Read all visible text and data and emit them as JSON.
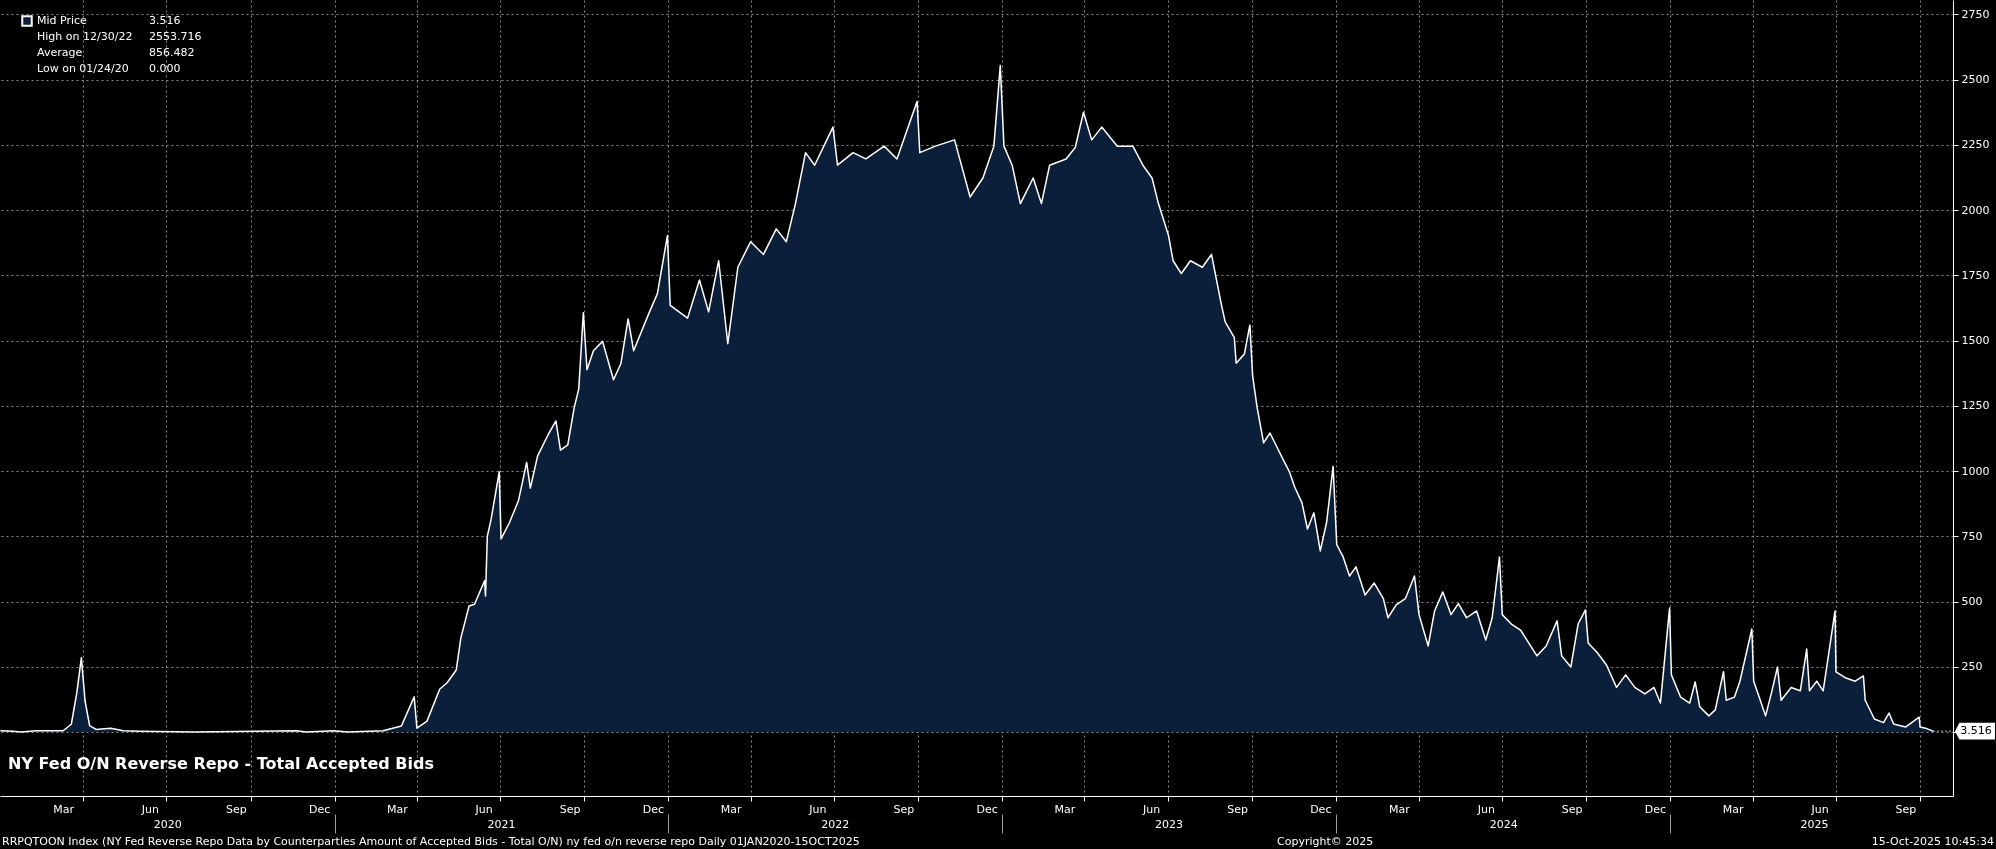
{
  "chart_data": {
    "type": "area",
    "title": "NY Fed O/N Reverse Repo - Total Accepted Bids",
    "x": [
      "2020-01-02",
      "2020-01-15",
      "2020-01-24",
      "2020-02-10",
      "2020-03-10",
      "2020-03-19",
      "2020-03-25",
      "2020-03-30",
      "2020-04-03",
      "2020-04-08",
      "2020-04-15",
      "2020-05-01",
      "2020-05-15",
      "2020-06-01",
      "2020-08-01",
      "2020-11-20",
      "2020-12-01",
      "2020-12-31",
      "2021-01-15",
      "2021-02-23",
      "2021-03-15",
      "2021-03-29",
      "2021-04-01",
      "2021-04-12",
      "2021-04-26",
      "2021-05-04",
      "2021-05-14",
      "2021-05-19",
      "2021-05-28",
      "2021-06-03",
      "2021-06-14",
      "2021-06-15",
      "2021-06-17",
      "2021-06-21",
      "2021-06-30",
      "2021-07-02",
      "2021-07-11",
      "2021-07-21",
      "2021-07-30",
      "2021-08-03",
      "2021-08-11",
      "2021-08-23",
      "2021-08-31",
      "2021-09-05",
      "2021-09-13",
      "2021-09-20",
      "2021-09-25",
      "2021-09-30",
      "2021-10-04",
      "2021-10-11",
      "2021-10-21",
      "2021-11-02",
      "2021-11-10",
      "2021-11-18",
      "2021-11-24",
      "2021-12-11",
      "2021-12-20",
      "2021-12-31",
      "2022-01-03",
      "2022-01-22",
      "2022-02-04",
      "2022-02-14",
      "2022-02-25",
      "2022-03-07",
      "2022-03-18",
      "2022-04-01",
      "2022-04-15",
      "2022-04-29",
      "2022-05-10",
      "2022-05-20",
      "2022-05-31",
      "2022-06-10",
      "2022-06-30",
      "2022-07-05",
      "2022-07-22",
      "2022-08-05",
      "2022-08-25",
      "2022-09-08",
      "2022-09-30",
      "2022-10-03",
      "2022-10-20",
      "2022-11-10",
      "2022-11-27",
      "2022-12-11",
      "2022-12-23",
      "2022-12-30",
      "2023-01-03",
      "2023-01-12",
      "2023-01-21",
      "2023-02-04",
      "2023-02-13",
      "2023-02-22",
      "2023-03-12",
      "2023-03-22",
      "2023-03-31",
      "2023-04-09",
      "2023-04-20",
      "2023-05-07",
      "2023-05-24",
      "2023-06-04",
      "2023-06-14",
      "2023-06-21",
      "2023-07-02",
      "2023-07-07",
      "2023-07-16",
      "2023-07-26",
      "2023-08-08",
      "2023-08-18",
      "2023-08-29",
      "2023-09-02",
      "2023-09-12",
      "2023-09-14",
      "2023-09-23",
      "2023-09-29",
      "2023-10-02",
      "2023-10-07",
      "2023-10-14",
      "2023-10-21",
      "2023-10-28",
      "2023-11-04",
      "2023-11-11",
      "2023-11-17",
      "2023-11-25",
      "2023-12-01",
      "2023-12-08",
      "2023-12-15",
      "2023-12-22",
      "2023-12-29",
      "2024-01-02",
      "2024-01-09",
      "2024-01-16",
      "2024-01-23",
      "2024-02-02",
      "2024-02-12",
      "2024-02-22",
      "2024-02-27",
      "2024-03-07",
      "2024-03-17",
      "2024-03-27",
      "2024-04-01",
      "2024-04-11",
      "2024-04-18",
      "2024-04-27",
      "2024-05-06",
      "2024-05-14",
      "2024-05-23",
      "2024-06-03",
      "2024-06-13",
      "2024-06-20",
      "2024-06-28",
      "2024-07-01",
      "2024-07-11",
      "2024-07-21",
      "2024-08-01",
      "2024-08-08",
      "2024-08-18",
      "2024-08-30",
      "2024-09-04",
      "2024-09-14",
      "2024-09-22",
      "2024-09-30",
      "2024-10-03",
      "2024-10-13",
      "2024-10-23",
      "2024-11-03",
      "2024-11-13",
      "2024-11-23",
      "2024-12-04",
      "2024-12-14",
      "2024-12-21",
      "2024-12-31",
      "2025-01-02",
      "2025-01-12",
      "2025-01-22",
      "2025-01-28",
      "2025-02-02",
      "2025-02-12",
      "2025-02-19",
      "2025-02-28",
      "2025-03-03",
      "2025-03-12",
      "2025-03-18",
      "2025-03-31",
      "2025-04-02",
      "2025-04-08",
      "2025-04-15",
      "2025-04-22",
      "2025-04-28",
      "2025-05-02",
      "2025-05-13",
      "2025-05-23",
      "2025-05-30",
      "2025-06-02",
      "2025-06-10",
      "2025-06-17",
      "2025-06-30",
      "2025-07-01",
      "2025-07-12",
      "2025-07-22",
      "2025-07-31",
      "2025-08-02",
      "2025-08-12",
      "2025-08-22",
      "2025-08-28",
      "2025-09-02",
      "2025-09-15",
      "2025-09-30",
      "2025-10-01",
      "2025-10-07",
      "2025-10-15"
    ],
    "series": [
      {
        "name": "Mid Price",
        "color": "#0b1f3b",
        "values": [
          5,
          3,
          0,
          5,
          5,
          30,
          150,
          285,
          120,
          25,
          10,
          15,
          5,
          3,
          0,
          5,
          0,
          5,
          0,
          5,
          23,
          135,
          15,
          42,
          165,
          189,
          238,
          360,
          483,
          490,
          580,
          521,
          751,
          813,
          997,
          740,
          801,
          886,
          1033,
          935,
          1058,
          1143,
          1192,
          1080,
          1100,
          1243,
          1315,
          1607,
          1388,
          1461,
          1497,
          1350,
          1411,
          1583,
          1461,
          1607,
          1680,
          1903,
          1635,
          1586,
          1732,
          1610,
          1806,
          1488,
          1781,
          1879,
          1830,
          1928,
          1879,
          2025,
          2220,
          2172,
          2318,
          2172,
          2220,
          2196,
          2245,
          2196,
          2416,
          2220,
          2245,
          2269,
          2050,
          2123,
          2245,
          2553.716,
          2245,
          2172,
          2025,
          2123,
          2025,
          2172,
          2196,
          2240,
          2375,
          2269,
          2318,
          2245,
          2245,
          2172,
          2123,
          2025,
          1903,
          1806,
          1757,
          1806,
          1781,
          1830,
          1635,
          1572,
          1511,
          1413,
          1449,
          1560,
          1365,
          1242,
          1108,
          1146,
          1096,
          1047,
          999,
          939,
          878,
          778,
          840,
          694,
          805,
          1018,
          718,
          671,
          598,
          633,
          525,
          571,
          511,
          438,
          487,
          511,
          598,
          450,
          330,
          464,
          537,
          450,
          492,
          438,
          464,
          353,
          438,
          671,
          450,
          414,
          391,
          330,
          292,
          330,
          426,
          292,
          249,
          414,
          468,
          341,
          304,
          257,
          171,
          219,
          171,
          146,
          171,
          111,
          475,
          219,
          134,
          111,
          192,
          97,
          62,
          85,
          231,
          122,
          134,
          195,
          395,
          195,
          134,
          62,
          158,
          249,
          122,
          171,
          158,
          318,
          158,
          195,
          158,
          464,
          231,
          207,
          195,
          215,
          122,
          50,
          36,
          73,
          31,
          19,
          57,
          19,
          15,
          3.516
        ]
      }
    ],
    "xlim": [
      "2020-01-01",
      "2025-11-06"
    ],
    "xticks": [
      {
        "value": "2020-03-10",
        "label": "Mar"
      },
      {
        "value": "2020-04-01",
        "label": null
      },
      {
        "value": "2020-06-13",
        "label": "Jun"
      },
      {
        "value": "2020-07-01",
        "label": null
      },
      {
        "value": "2020-09-15",
        "label": "Sep"
      },
      {
        "value": "2020-10-01",
        "label": null
      },
      {
        "value": "2020-12-15",
        "label": "Dec"
      },
      {
        "value": "2021-01-01",
        "label": null
      },
      {
        "value": "2021-03-10",
        "label": "Mar"
      },
      {
        "value": "2021-04-01",
        "label": null
      },
      {
        "value": "2021-06-13",
        "label": "Jun"
      },
      {
        "value": "2021-07-01",
        "label": null
      },
      {
        "value": "2021-09-15",
        "label": "Sep"
      },
      {
        "value": "2021-10-01",
        "label": null
      },
      {
        "value": "2021-12-15",
        "label": "Dec"
      },
      {
        "value": "2022-01-01",
        "label": null
      },
      {
        "value": "2022-03-10",
        "label": "Mar"
      },
      {
        "value": "2022-04-01",
        "label": null
      },
      {
        "value": "2022-06-13",
        "label": "Jun"
      },
      {
        "value": "2022-07-01",
        "label": null
      },
      {
        "value": "2022-09-15",
        "label": "Sep"
      },
      {
        "value": "2022-10-01",
        "label": null
      },
      {
        "value": "2022-12-15",
        "label": "Dec"
      },
      {
        "value": "2023-01-01",
        "label": null
      },
      {
        "value": "2023-03-10",
        "label": "Mar"
      },
      {
        "value": "2023-04-01",
        "label": null
      },
      {
        "value": "2023-06-13",
        "label": "Jun"
      },
      {
        "value": "2023-07-01",
        "label": null
      },
      {
        "value": "2023-09-15",
        "label": "Sep"
      },
      {
        "value": "2023-10-01",
        "label": null
      },
      {
        "value": "2023-12-15",
        "label": "Dec"
      },
      {
        "value": "2024-01-01",
        "label": null
      },
      {
        "value": "2024-03-10",
        "label": "Mar"
      },
      {
        "value": "2024-04-01",
        "label": null
      },
      {
        "value": "2024-06-13",
        "label": "Jun"
      },
      {
        "value": "2024-07-01",
        "label": null
      },
      {
        "value": "2024-09-15",
        "label": "Sep"
      },
      {
        "value": "2024-10-01",
        "label": null
      },
      {
        "value": "2024-12-15",
        "label": "Dec"
      },
      {
        "value": "2025-01-01",
        "label": null
      },
      {
        "value": "2025-03-10",
        "label": "Mar"
      },
      {
        "value": "2025-04-01",
        "label": null
      },
      {
        "value": "2025-06-13",
        "label": "Jun"
      },
      {
        "value": "2025-07-01",
        "label": null
      },
      {
        "value": "2025-09-15",
        "label": "Sep"
      },
      {
        "value": "2025-10-01",
        "label": null
      }
    ],
    "x2lim": [
      "2020-01-01",
      "2025-11-06"
    ],
    "x2ticks": [
      {
        "value": "2020-07-02",
        "label": "2020"
      },
      {
        "value": "2021-01-01",
        "label": null
      },
      {
        "value": "2021-07-02",
        "label": "2021"
      },
      {
        "value": "2022-01-01",
        "label": null
      },
      {
        "value": "2022-07-02",
        "label": "2022"
      },
      {
        "value": "2023-01-01",
        "label": null
      },
      {
        "value": "2023-07-02",
        "label": "2023"
      },
      {
        "value": "2024-01-01",
        "label": null
      },
      {
        "value": "2024-07-02",
        "label": "2024"
      },
      {
        "value": "2025-01-01",
        "label": null
      },
      {
        "value": "2025-06-07",
        "label": "2025"
      }
    ],
    "ylim": [
      -245,
      2805
    ],
    "yticks": [
      {
        "value": 0,
        "label": null
      },
      250,
      500,
      750,
      1000,
      1250,
      1500,
      1750,
      2000,
      2250,
      2500,
      2750
    ],
    "grid": true,
    "legend": "top left",
    "annotations": [
      "3.516",
      "High on 12/30/22",
      "2553.716",
      "Average",
      "856.482",
      "Low on 01/24/20",
      "0.000",
      "RRPQTOON Index (NY Fed Reverse Repo Data by Counterparties Amount of Accepted Bids - Total O/N) ny fed o/n reverse repo Daily 01JAN2020-15OCT2025",
      "Copyright© 2025",
      "15-Oct-2025 10:45:34",
      {
        "text": "3.516",
        "x": "2025-10-15",
        "y": 3.516
      }
    ]
  }
}
